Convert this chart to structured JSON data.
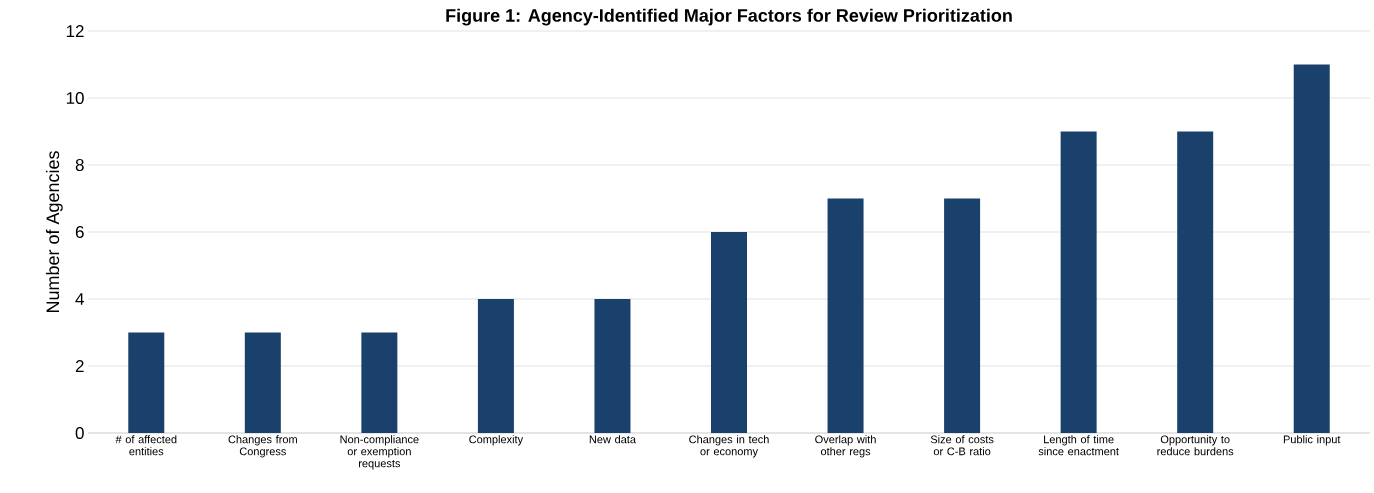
{
  "chart_data": {
    "type": "bar",
    "title": "Figure 1: Agency-Identified Major Factors for Review Prioritization",
    "ylabel": "Number of Agencies",
    "categories": [
      "# of affected entities",
      "Changes from Congress",
      "Non-compliance or exemption requests",
      "Complexity",
      "New data",
      "Changes in tech or economy",
      "Overlap with other regs",
      "Size of costs or C-B ratio",
      "Length of time since enactment",
      "Opportunity to reduce burdens",
      "Public input"
    ],
    "values": [
      3,
      3,
      3,
      4,
      4,
      6,
      7,
      7,
      9,
      9,
      11
    ],
    "color": "#1a406c",
    "ylim": [
      0,
      12
    ],
    "yticks": [
      0,
      2,
      4,
      6,
      8,
      10,
      12
    ],
    "grid": "y"
  }
}
